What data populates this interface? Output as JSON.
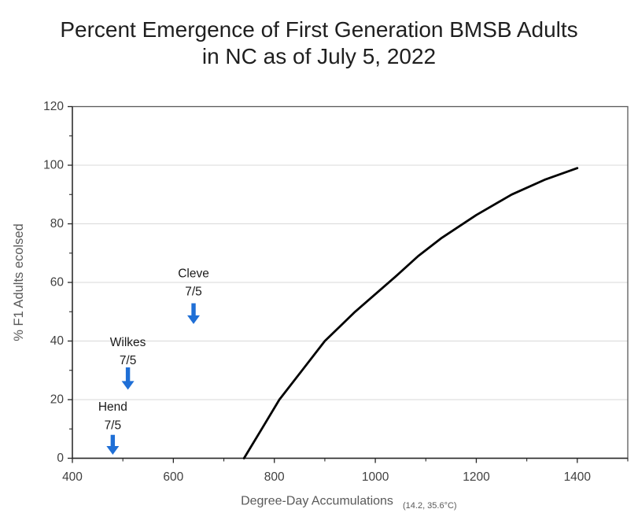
{
  "title": {
    "line1": "Percent Emergence of First Generation BMSB Adults",
    "line2": "in NC as of July 5, 2022"
  },
  "colors": {
    "curve": "#000000",
    "arrow_blue": "#1f6fd6",
    "gridline": "#d9d9d9",
    "plot_border": "#595959",
    "axis_line": "#262626",
    "tick_label": "#404040",
    "axis_label": "#595959",
    "annotation_text": "#1a1a1a",
    "title_text": "#1f1f1f",
    "background": "#ffffff"
  },
  "chart_data": {
    "type": "line",
    "title": "Percent Emergence of First Generation BMSB Adults in NC as of July 5, 2022",
    "xlabel": "Degree-Day Accumulations",
    "xlabel_note": "(14.2, 35.6°C)",
    "ylabel": "% F1 Adults ecolsed",
    "xlim": [
      400,
      1500
    ],
    "ylim": [
      0,
      120
    ],
    "x_ticks": [
      400,
      600,
      800,
      1000,
      1200,
      1400
    ],
    "x_minor_ticks": [
      500,
      700,
      900,
      1100,
      1300,
      1500
    ],
    "y_ticks": [
      0,
      20,
      40,
      60,
      80,
      100,
      120
    ],
    "y_minor_ticks": [
      10,
      30,
      50,
      70,
      90,
      110
    ],
    "grid": "horizontal-only",
    "legend": "none",
    "series": [
      {
        "x": [
          740,
          775,
          810,
          855,
          900,
          930,
          960,
          1000,
          1040,
          1085,
          1130,
          1200,
          1270,
          1335,
          1400
        ],
        "y": [
          0,
          10,
          20,
          30,
          40,
          45,
          50,
          56,
          62,
          69,
          75,
          83,
          90,
          95,
          99
        ],
        "color": "#000000"
      }
    ],
    "annotations": [
      {
        "label": "Hend",
        "date": "7/5",
        "x": 480,
        "label_y": 17.4,
        "date_y": 11.2,
        "arrow_tail_y": 8.0,
        "arrow_tip_y": 1.2
      },
      {
        "label": "Wilkes",
        "date": "7/5",
        "x": 510,
        "label_y": 39.5,
        "date_y": 33.3,
        "arrow_tail_y": 31.0,
        "arrow_tip_y": 23.4
      },
      {
        "label": "Cleve",
        "date": "7/5",
        "x": 640,
        "label_y": 63.0,
        "date_y": 56.8,
        "arrow_tail_y": 52.9,
        "arrow_tip_y": 45.8
      }
    ]
  }
}
